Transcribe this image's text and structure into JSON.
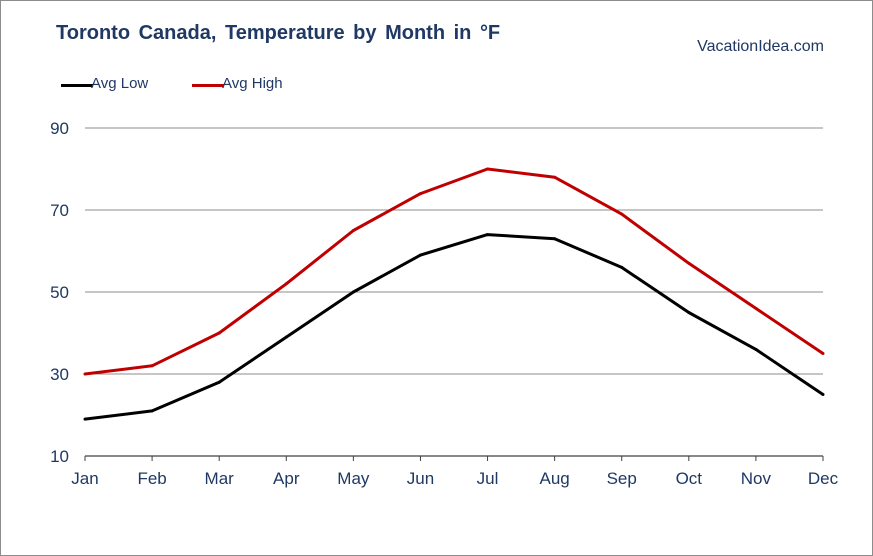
{
  "chart_data": {
    "type": "line",
    "title": "Toronto Canada, Temperature by Month in °F",
    "source": "VacationIdea.com",
    "categories": [
      "Jan",
      "Feb",
      "Mar",
      "Apr",
      "May",
      "Jun",
      "Jul",
      "Aug",
      "Sep",
      "Oct",
      "Nov",
      "Dec"
    ],
    "series": [
      {
        "name": "Avg Low",
        "color": "#000000",
        "values": [
          19,
          21,
          28,
          39,
          50,
          59,
          64,
          63,
          56,
          45,
          36,
          25
        ]
      },
      {
        "name": "Avg High",
        "color": "#c00000",
        "values": [
          30,
          32,
          40,
          52,
          65,
          74,
          80,
          78,
          69,
          57,
          46,
          35
        ]
      }
    ],
    "yticks": [
      10,
      30,
      50,
      70,
      90
    ],
    "ylim": [
      10,
      90
    ],
    "xlabel": "",
    "ylabel": "",
    "grid": true,
    "legend": "top-left"
  }
}
